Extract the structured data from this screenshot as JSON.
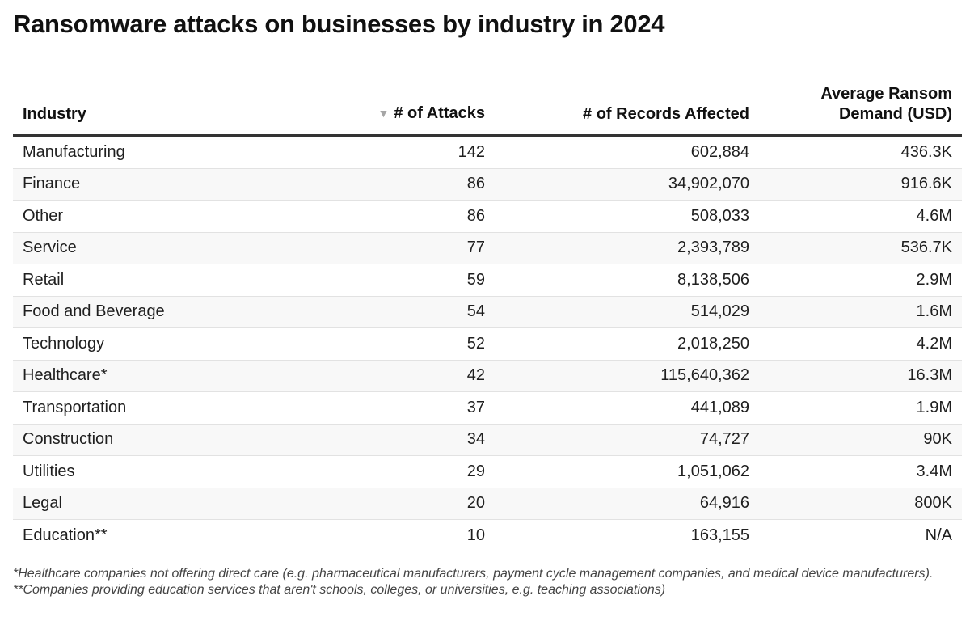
{
  "title": "Ransomware attacks on businesses by industry in 2024",
  "columns": {
    "industry": "Industry",
    "attacks": "# of Attacks",
    "records": "# of Records Affected",
    "ransom_line1": "Average Ransom",
    "ransom_line2": "Demand (USD)"
  },
  "sort": {
    "column": "# of Attacks",
    "direction": "descending",
    "icon": "sort-down-icon"
  },
  "chart_data": {
    "type": "table",
    "title": "Ransomware attacks on businesses by industry in 2024",
    "headers": [
      "Industry",
      "# of Attacks",
      "# of Records Affected",
      "Average Ransom Demand (USD)"
    ],
    "rows": [
      {
        "industry": "Manufacturing",
        "attacks": "142",
        "records": "602,884",
        "ransom": "436.3K"
      },
      {
        "industry": "Finance",
        "attacks": "86",
        "records": "34,902,070",
        "ransom": "916.6K"
      },
      {
        "industry": "Other",
        "attacks": "86",
        "records": "508,033",
        "ransom": "4.6M"
      },
      {
        "industry": "Service",
        "attacks": "77",
        "records": "2,393,789",
        "ransom": "536.7K"
      },
      {
        "industry": "Retail",
        "attacks": "59",
        "records": "8,138,506",
        "ransom": "2.9M"
      },
      {
        "industry": "Food and Beverage",
        "attacks": "54",
        "records": "514,029",
        "ransom": "1.6M"
      },
      {
        "industry": "Technology",
        "attacks": "52",
        "records": "2,018,250",
        "ransom": "4.2M"
      },
      {
        "industry": "Healthcare*",
        "attacks": "42",
        "records": "115,640,362",
        "ransom": "16.3M"
      },
      {
        "industry": "Transportation",
        "attacks": "37",
        "records": "441,089",
        "ransom": "1.9M"
      },
      {
        "industry": "Construction",
        "attacks": "34",
        "records": "74,727",
        "ransom": "90K"
      },
      {
        "industry": "Utilities",
        "attacks": "29",
        "records": "1,051,062",
        "ransom": "3.4M"
      },
      {
        "industry": "Legal",
        "attacks": "20",
        "records": "64,916",
        "ransom": "800K"
      },
      {
        "industry": "Education**",
        "attacks": "10",
        "records": "163,155",
        "ransom": "N/A"
      }
    ]
  },
  "footnotes": [
    "*Healthcare companies not offering direct care (e.g. pharmaceutical manufacturers, payment cycle management companies, and medical device manufacturers).",
    "**Companies providing education services that aren't schools, colleges, or universities, e.g. teaching associations)"
  ]
}
